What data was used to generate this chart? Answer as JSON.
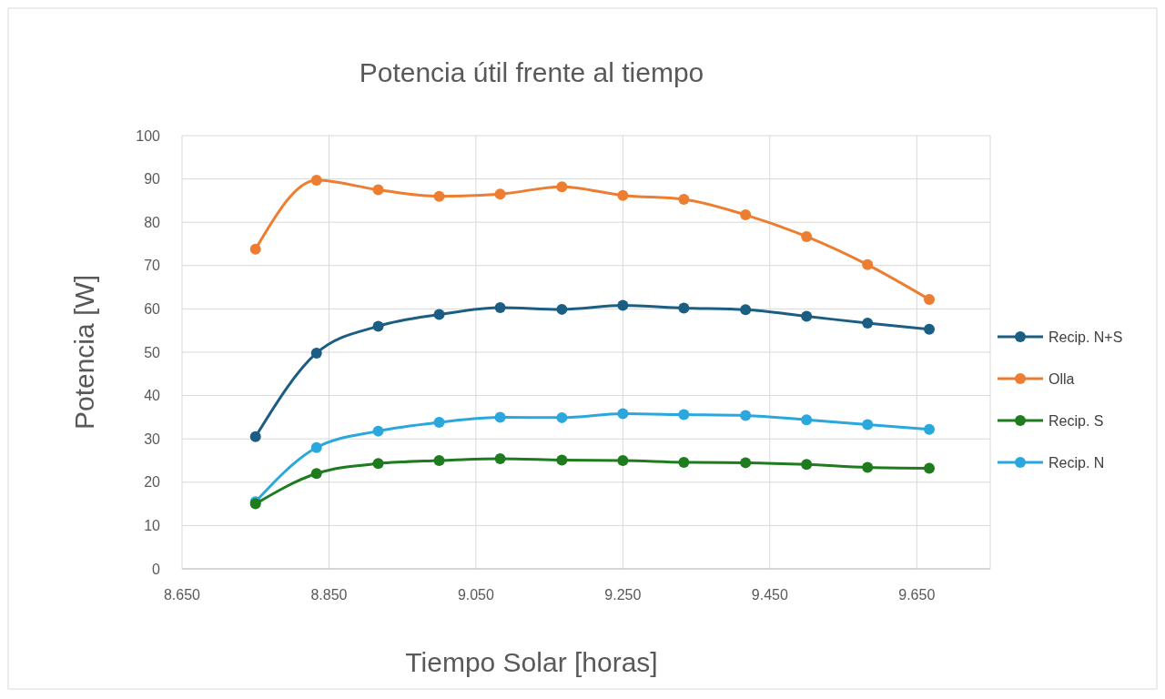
{
  "chart_data": {
    "type": "line",
    "title": "Potencia útil frente al tiempo",
    "xlabel": "Tiempo Solar [horas]",
    "ylabel": "Potencia [W]",
    "x": [
      8.75,
      8.833,
      8.917,
      9.0,
      9.083,
      9.167,
      9.25,
      9.333,
      9.417,
      9.5,
      9.583,
      9.667
    ],
    "series": [
      {
        "name": "Recip. N+S",
        "color": "#1b5e83",
        "values": [
          30.5,
          49.8,
          56,
          58.7,
          60.3,
          59.9,
          60.8,
          60.2,
          59.8,
          58.3,
          56.7,
          55.3
        ]
      },
      {
        "name": "Olla",
        "color": "#ed7d31",
        "values": [
          73.8,
          89.7,
          87.5,
          86,
          86.5,
          88.2,
          86.2,
          85.3,
          81.7,
          76.7,
          70.2,
          62.2
        ]
      },
      {
        "name": "Recip. S",
        "color": "#1e7b1e",
        "values": [
          15,
          22,
          24.3,
          25,
          25.4,
          25.1,
          25,
          24.6,
          24.5,
          24.1,
          23.4,
          23.2
        ]
      },
      {
        "name": "Recip. N",
        "color": "#2aa7dd",
        "values": [
          15.5,
          28,
          31.8,
          33.8,
          35,
          34.9,
          35.8,
          35.6,
          35.4,
          34.4,
          33.3,
          32.2
        ]
      }
    ],
    "xlim": [
      8.65,
      9.75
    ],
    "xticks": [
      {
        "value": 8.65,
        "label": "8.650"
      },
      {
        "value": 8.85,
        "label": "8.850"
      },
      {
        "value": 9.05,
        "label": "9.050"
      },
      {
        "value": 9.25,
        "label": "9.250"
      },
      {
        "value": 9.45,
        "label": "9.450"
      },
      {
        "value": 9.65,
        "label": "9.650"
      }
    ],
    "ylim": [
      0,
      100
    ],
    "yticks": [
      0,
      10,
      20,
      30,
      40,
      50,
      60,
      70,
      80,
      90,
      100
    ],
    "grid": true,
    "legend": "right",
    "marker": "circle",
    "line_style": "solid"
  }
}
